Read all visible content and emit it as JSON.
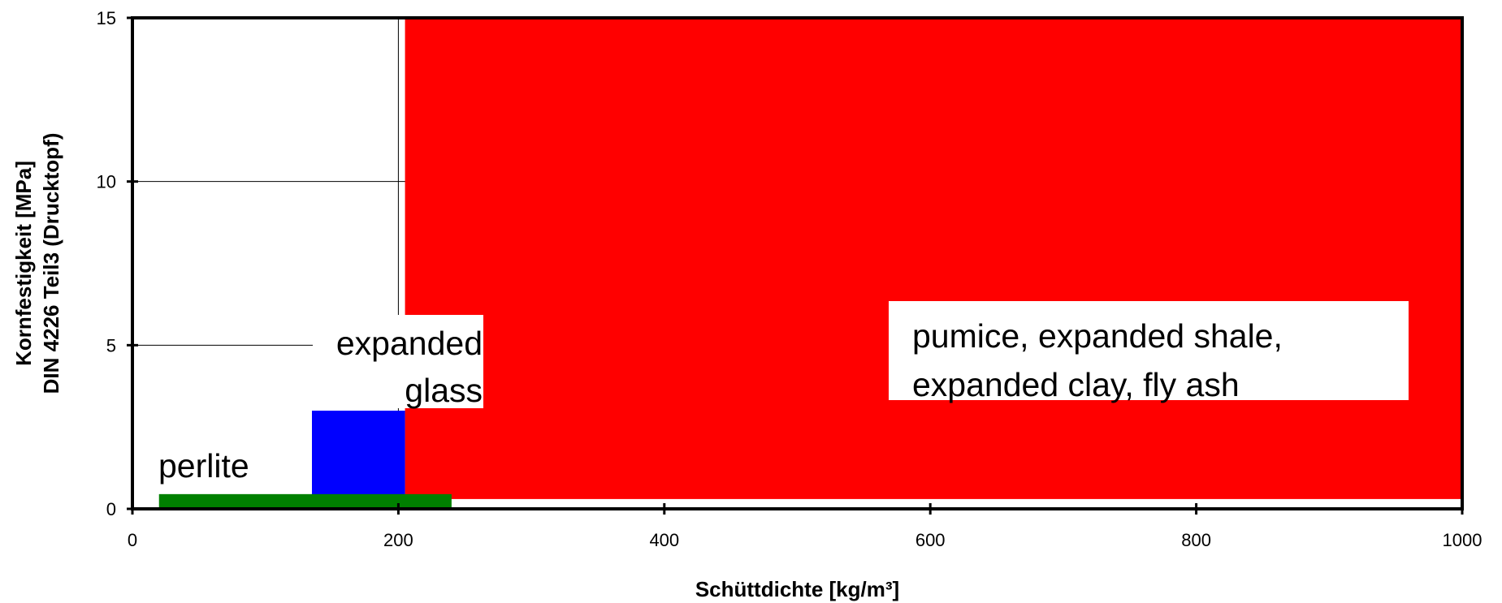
{
  "chart_data": {
    "type": "area",
    "title": "",
    "xlabel": "Schüttdichte [kg/m³]",
    "ylabel_lines": [
      "Kornfestigkeit [MPa]",
      "DIN 4226 Teil3 (Drucktopf)"
    ],
    "xlim": [
      0,
      1000
    ],
    "ylim": [
      0,
      15
    ],
    "xticks": [
      0,
      200,
      400,
      600,
      800,
      1000
    ],
    "yticks": [
      0,
      5,
      10,
      15
    ],
    "regions": [
      {
        "label_lines": [
          "pumice, expanded shale,",
          "expanded clay, fly ash"
        ],
        "color": "#ff0000",
        "x": [
          205,
          1000
        ],
        "y": [
          0.3,
          15
        ]
      },
      {
        "label_lines": [
          "expanded",
          "glass"
        ],
        "color": "#0000ff",
        "x": [
          135,
          205
        ],
        "y": [
          0.3,
          3
        ]
      },
      {
        "label_lines": [
          "perlite"
        ],
        "color": "#008000",
        "x": [
          20,
          240
        ],
        "y": [
          0,
          0.45
        ]
      }
    ]
  }
}
